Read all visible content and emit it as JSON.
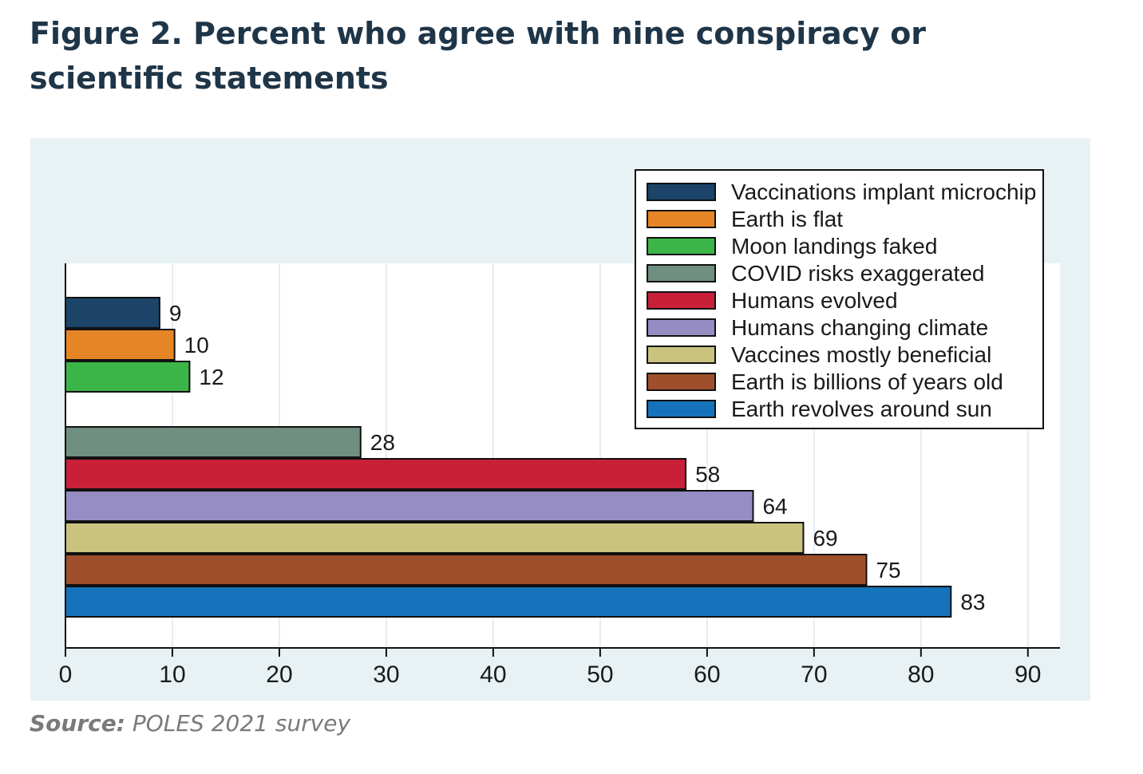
{
  "figure": {
    "title": "Figure 2. Percent who agree with nine conspiracy or scientific statements",
    "source_label": "Source:",
    "source_text": "POLES 2021 survey"
  },
  "chart_data": {
    "type": "bar",
    "orientation": "horizontal",
    "title": "",
    "xlabel": "",
    "ylabel": "",
    "xlim": [
      0,
      93
    ],
    "xticks": [
      0,
      10,
      20,
      30,
      40,
      50,
      60,
      70,
      80,
      90
    ],
    "grid": true,
    "legend_position": "top-right",
    "categories": [
      "Vaccinations implant microchip",
      "Earth is flat",
      "Moon landings faked",
      "COVID risks exaggerated",
      "Humans evolved",
      "Humans changing climate",
      "Vaccines mostly beneficial",
      "Earth is billions of years old",
      "Earth revolves around sun"
    ],
    "values": [
      9,
      10,
      12,
      28,
      58,
      64,
      69,
      75,
      83
    ],
    "data_labels": [
      "9",
      "10",
      "12",
      "28",
      "58",
      "64",
      "69",
      "75",
      "83"
    ],
    "precise_values": [
      8.8,
      10.2,
      11.6,
      27.6,
      58.0,
      64.3,
      69.0,
      74.9,
      82.8
    ],
    "groups": [
      [
        0,
        1,
        2
      ],
      [
        3,
        4,
        5,
        6,
        7,
        8
      ]
    ],
    "colors": [
      "#1b4468",
      "#e68525",
      "#3cb548",
      "#6f8f80",
      "#c82038",
      "#958dc4",
      "#c9c37f",
      "#a04f2c",
      "#1573bb"
    ],
    "background_color": "#e8f2f4",
    "plot_background": "#ffffff"
  }
}
